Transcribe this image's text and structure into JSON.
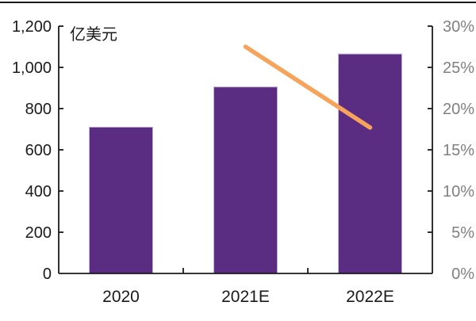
{
  "chart_data": {
    "type": "combo",
    "title": "",
    "unit_label": "亿美元",
    "categories": [
      "2020",
      "2021E",
      "2022E"
    ],
    "series": [
      {
        "name": "market-size-bar",
        "type": "bar",
        "axis": "left",
        "values": [
          710,
          905,
          1065
        ],
        "color": "#5A2D82",
        "border_color": "#C3B3D6"
      },
      {
        "name": "growth-rate-line",
        "type": "line",
        "axis": "right",
        "values": [
          null,
          27.5,
          17.7
        ],
        "color": "#F6A45C"
      }
    ],
    "left_axis": {
      "min": 0,
      "max": 1200,
      "step": 200,
      "tick_labels": [
        "0",
        "200",
        "400",
        "600",
        "800",
        "1,000",
        "1,200"
      ],
      "label_color": "#1a1a1a"
    },
    "right_axis": {
      "min": 0,
      "max": 30,
      "step": 5,
      "tick_labels": [
        "0%",
        "5%",
        "10%",
        "15%",
        "20%",
        "25%",
        "30%"
      ],
      "label_color": "#808080"
    },
    "axis_line_color": "#1a1a1a",
    "grid": false,
    "legend_position": "none"
  }
}
